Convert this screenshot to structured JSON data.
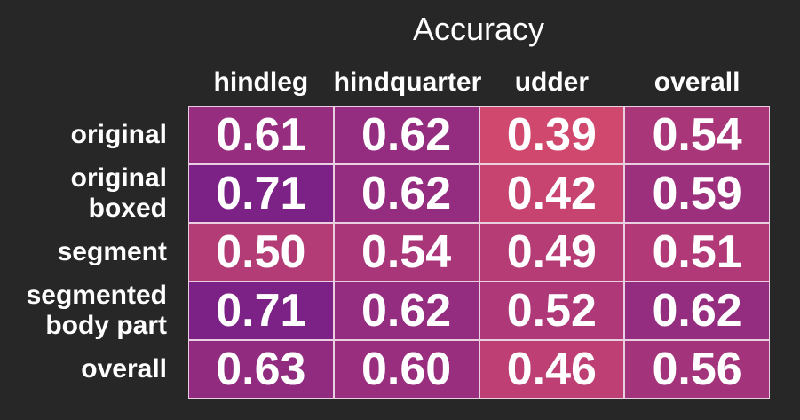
{
  "chart_data": {
    "type": "heatmap",
    "title": "Accuracy",
    "columns": [
      "hindleg",
      "hindquarter",
      "udder",
      "overall"
    ],
    "rows": [
      [
        "original"
      ],
      [
        "original",
        "boxed"
      ],
      [
        "segment"
      ],
      [
        "segmented",
        "body part"
      ],
      [
        "overall"
      ]
    ],
    "values": [
      [
        0.61,
        0.62,
        0.39,
        0.54
      ],
      [
        0.71,
        0.62,
        0.42,
        0.59
      ],
      [
        0.5,
        0.54,
        0.49,
        0.51
      ],
      [
        0.71,
        0.62,
        0.52,
        0.62
      ],
      [
        0.63,
        0.6,
        0.46,
        0.56
      ]
    ],
    "value_format": "0.00",
    "colormap": {
      "low": "#d0486e",
      "high": "#7c2186"
    }
  }
}
